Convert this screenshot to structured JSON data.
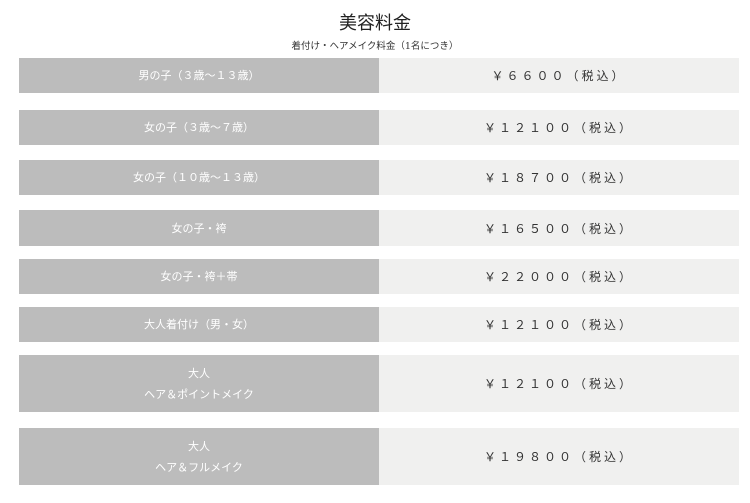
{
  "header": {
    "title": "美容料金",
    "subtitle": "着付け・ヘアメイク料金（1名につき）"
  },
  "rows": [
    {
      "label": [
        "男の子（３歳〜１３歳）"
      ],
      "price": "￥６６００（税込）"
    },
    {
      "label": [
        "女の子（３歳〜７歳）"
      ],
      "price": "￥１２１００（税込）"
    },
    {
      "label": [
        "女の子（１０歳〜１３歳）"
      ],
      "price": "￥１８７００（税込）"
    },
    {
      "label": [
        "女の子・袴"
      ],
      "price": "￥１６５００（税込）"
    },
    {
      "label": [
        "女の子・袴＋帯"
      ],
      "price": "￥２２０００（税込）"
    },
    {
      "label": [
        "大人着付け（男・女）"
      ],
      "price": "￥１２１００（税込）"
    },
    {
      "label": [
        "大人",
        "ヘア＆ポイントメイク"
      ],
      "price": "￥１２１００（税込）"
    },
    {
      "label": [
        "大人",
        "ヘア＆フルメイク"
      ],
      "price": "￥１９８００（税込）"
    }
  ],
  "colors": {
    "label_bg": "#bcbcbc",
    "price_bg": "#f0f0ef"
  }
}
